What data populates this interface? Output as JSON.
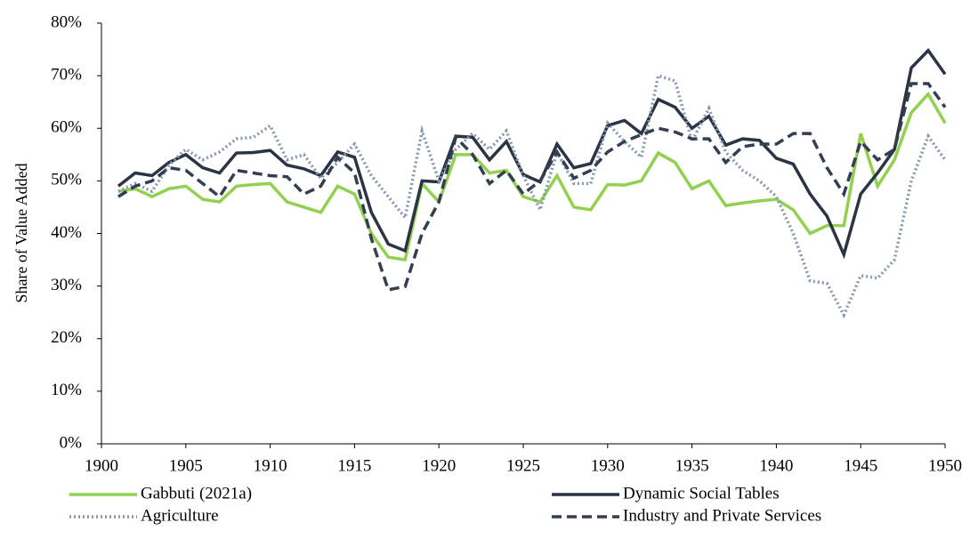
{
  "chart_data": {
    "type": "line",
    "y_label": "Share of  Value Added",
    "x": [
      1901,
      1902,
      1903,
      1904,
      1905,
      1906,
      1907,
      1908,
      1909,
      1910,
      1911,
      1912,
      1913,
      1914,
      1915,
      1916,
      1917,
      1918,
      1919,
      1920,
      1921,
      1922,
      1923,
      1924,
      1925,
      1926,
      1927,
      1928,
      1929,
      1930,
      1931,
      1932,
      1933,
      1934,
      1935,
      1936,
      1937,
      1938,
      1939,
      1940,
      1941,
      1942,
      1943,
      1944,
      1945,
      1946,
      1947,
      1948,
      1949,
      1950
    ],
    "xlim": [
      1900,
      1950
    ],
    "xticks": [
      1900,
      1905,
      1910,
      1915,
      1920,
      1925,
      1930,
      1935,
      1940,
      1945,
      1950
    ],
    "ylim": [
      0,
      80
    ],
    "yticks": [
      {
        "value": 0,
        "label": "0%"
      },
      {
        "value": 10,
        "label": "10%"
      },
      {
        "value": 20,
        "label": "20%"
      },
      {
        "value": 30,
        "label": "30%"
      },
      {
        "value": 40,
        "label": "40%"
      },
      {
        "value": 50,
        "label": "50%"
      },
      {
        "value": 60,
        "label": "60%"
      },
      {
        "value": 70,
        "label": "70%"
      },
      {
        "value": 80,
        "label": "80%"
      }
    ],
    "grid": false,
    "series": [
      {
        "name": "Gabbuti (2021a)",
        "color": "#92d050",
        "line_style": "solid",
        "values": [
          48,
          48.5,
          47,
          48.5,
          49,
          46.5,
          46,
          49,
          49.3,
          49.5,
          46,
          45,
          44,
          49,
          47.5,
          40,
          35.5,
          35,
          49.5,
          46,
          55,
          55,
          51.5,
          52,
          47,
          46,
          51,
          45,
          44.5,
          49.3,
          49.2,
          50,
          55.3,
          53.5,
          48.5,
          50,
          45.3,
          45.8,
          46.2,
          46.5,
          44.5,
          40,
          41.5,
          41.5,
          59,
          49,
          54,
          63,
          66.5,
          61
        ]
      },
      {
        "name": "Dynamic Social Tables",
        "color": "#2b3445",
        "line_style": "solid",
        "values": [
          49,
          51.5,
          51,
          53.5,
          55,
          52.5,
          51.5,
          55.3,
          55.4,
          55.8,
          53,
          52.3,
          51,
          55.5,
          54.5,
          44,
          38,
          36.7,
          50,
          49.8,
          58.5,
          58.3,
          54,
          57.5,
          51.2,
          49.8,
          57,
          52.5,
          53.3,
          60.5,
          61.5,
          59,
          65.5,
          64,
          60,
          62.3,
          56.8,
          58,
          57.7,
          54.3,
          53.2,
          47.5,
          43.3,
          36,
          47.5,
          51.5,
          56,
          71.5,
          74.8,
          70.3
        ]
      },
      {
        "name": "Agriculture",
        "color": "#8496b0",
        "line_style": "dotted",
        "values": [
          48,
          49.5,
          48,
          53,
          56,
          54,
          55.5,
          58,
          58.3,
          60.5,
          54,
          55,
          50.5,
          53.5,
          57,
          51,
          47,
          43,
          59.5,
          50,
          56,
          59,
          56,
          59.5,
          51,
          44.5,
          55.5,
          49.5,
          49.5,
          61,
          57.5,
          54.5,
          70,
          69,
          57.5,
          63.8,
          55.5,
          52,
          50,
          47,
          40,
          31,
          30.5,
          24.5,
          32,
          31.5,
          35,
          50,
          58.5,
          54
        ]
      },
      {
        "name": "Industry and Private Services",
        "color": "#333f50",
        "line_style": "dashed",
        "values": [
          47,
          49,
          50,
          52.5,
          52,
          49.5,
          47,
          52,
          51.5,
          51,
          50.8,
          47.5,
          49,
          54.5,
          51.5,
          39,
          29.3,
          29.9,
          40,
          46,
          58.3,
          55,
          49.5,
          52,
          47.5,
          50,
          55.5,
          50.5,
          52,
          55.5,
          57.5,
          58.8,
          60,
          59.3,
          58,
          58,
          53.5,
          56.5,
          57,
          57,
          59,
          59,
          52.5,
          47.5,
          57.5,
          54,
          56,
          68.5,
          68.5,
          64
        ]
      }
    ]
  }
}
